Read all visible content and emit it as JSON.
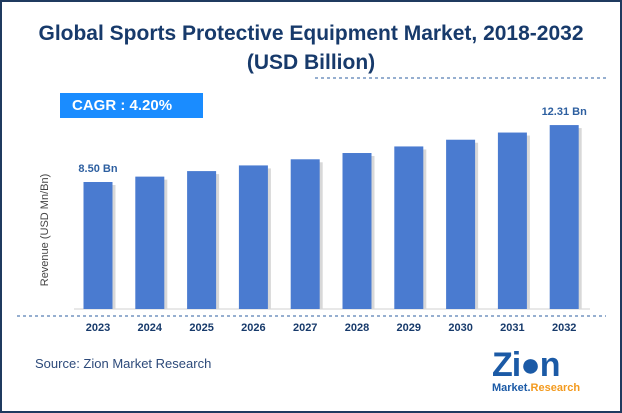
{
  "title_line1": "Global Sports Protective Equipment Market, 2018-2032",
  "title_line2": "(USD Billion)",
  "cagr": "CAGR :  4.20%",
  "source": "Source: Zion Market Research",
  "logo_text": "Zion Market.Research",
  "colors": {
    "bar": "#4a7bd0",
    "title": "#173a6b",
    "cagr_bg": "#1a8cff",
    "label": "#2d5fa0"
  },
  "chart_data": {
    "type": "bar",
    "title": "Global Sports Protective Equipment Market, 2018-2032 (USD Billion)",
    "ylabel": "Revenue (USD Mn/Bn)",
    "categories": [
      "2023",
      "2024",
      "2025",
      "2026",
      "2027",
      "2028",
      "2029",
      "2030",
      "2031",
      "2032"
    ],
    "values": [
      8.5,
      8.86,
      9.23,
      9.61,
      10.02,
      10.44,
      10.88,
      11.33,
      11.81,
      12.31
    ],
    "data_labels": {
      "0": "8.50 Bn",
      "9": "12.31 Bn"
    },
    "ylim": [
      0,
      13
    ],
    "grid": false
  }
}
